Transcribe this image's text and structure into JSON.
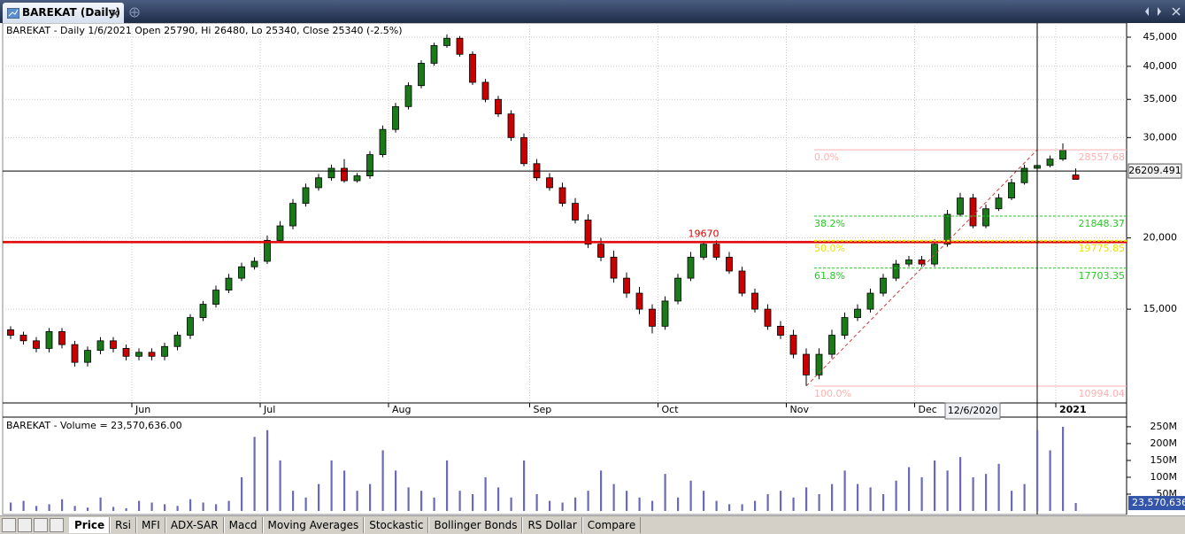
{
  "window": {
    "title": "BAREKAT (Daily)"
  },
  "tabs": [
    "Price",
    "Rsi",
    "MFI",
    "ADX-SAR",
    "Macd",
    "Moving Averages",
    "Stockastic",
    "Bollinger Bonds",
    "RS Dollar",
    "Compare"
  ],
  "chart_data": [
    {
      "type": "candlestick",
      "title": "BAREKAT - Daily 1/6/2021 Open 25790, Hi 26480, Lo 25340, Close 25340 (-2.5%)",
      "categories": [
        null,
        null,
        null,
        null,
        null,
        null,
        null,
        null,
        null,
        null,
        "Jun",
        null,
        null,
        null,
        null,
        null,
        null,
        null,
        null,
        null,
        "Jul",
        null,
        null,
        null,
        null,
        null,
        null,
        null,
        null,
        null,
        "Aug",
        null,
        null,
        null,
        null,
        null,
        null,
        null,
        null,
        null,
        null,
        "Sep",
        null,
        null,
        null,
        null,
        null,
        null,
        null,
        null,
        null,
        "Oct",
        null,
        null,
        null,
        null,
        null,
        null,
        null,
        null,
        null,
        "Nov",
        null,
        null,
        null,
        null,
        null,
        null,
        null,
        null,
        null,
        "Dec",
        null,
        null,
        null,
        null,
        null,
        null,
        null,
        null,
        null,
        null,
        "2021",
        null
      ],
      "open": [
        13800,
        13500,
        13200,
        12800,
        13700,
        13000,
        12100,
        12700,
        13200,
        12800,
        12400,
        12600,
        12400,
        12900,
        13500,
        14500,
        15300,
        16200,
        17000,
        17800,
        18200,
        19800,
        21000,
        23000,
        24500,
        25500,
        26500,
        25200,
        25700,
        28000,
        31000,
        34000,
        37000,
        40500,
        43500,
        44800,
        42000,
        37500,
        35000,
        33000,
        30000,
        27000,
        25500,
        24500,
        23000,
        21500,
        19500,
        18500,
        17000,
        16000,
        15000,
        14000,
        15500,
        17000,
        18500,
        19500,
        18500,
        17500,
        16000,
        15000,
        14000,
        13500,
        12500,
        11500,
        12500,
        13500,
        14500,
        15000,
        16000,
        17000,
        18000,
        18300,
        18000,
        19500,
        22000,
        23500,
        21000,
        22500,
        23500,
        25000,
        26500,
        26800,
        27500,
        25790
      ],
      "high": [
        14000,
        13700,
        13400,
        13900,
        13900,
        13200,
        12900,
        13400,
        13400,
        13000,
        12800,
        12800,
        13100,
        13700,
        14700,
        15500,
        16500,
        17300,
        18100,
        18500,
        20200,
        21400,
        23400,
        24900,
        25900,
        26900,
        27500,
        26000,
        28400,
        31500,
        34500,
        37500,
        41000,
        44000,
        45500,
        45200,
        42500,
        38000,
        35500,
        33500,
        30500,
        27500,
        26000,
        25000,
        23500,
        22000,
        20000,
        19000,
        17400,
        16400,
        15300,
        15800,
        17300,
        18900,
        19670,
        19800,
        18900,
        17800,
        16300,
        15300,
        14300,
        13800,
        12800,
        12800,
        13800,
        14800,
        15300,
        16300,
        17300,
        18300,
        18600,
        18600,
        19900,
        22400,
        24000,
        23900,
        22900,
        23900,
        25400,
        26900,
        27200,
        27900,
        29300,
        26480
      ],
      "low": [
        13300,
        13000,
        12600,
        12600,
        12800,
        11900,
        11900,
        12500,
        12600,
        12200,
        12200,
        12200,
        12200,
        12700,
        13300,
        14300,
        15100,
        16000,
        16800,
        17600,
        18000,
        19600,
        20700,
        22700,
        24200,
        25200,
        25000,
        25000,
        25400,
        27700,
        30600,
        33600,
        36600,
        40100,
        43100,
        41600,
        37100,
        34600,
        32600,
        29600,
        26700,
        25200,
        24200,
        22700,
        21200,
        19200,
        18200,
        16700,
        15700,
        14700,
        13600,
        13800,
        15300,
        16800,
        18300,
        18300,
        17300,
        15800,
        14800,
        13800,
        13300,
        12300,
        11000,
        11300,
        12300,
        13300,
        14300,
        14800,
        15800,
        16800,
        17800,
        17800,
        17800,
        19300,
        21800,
        20800,
        20800,
        22300,
        23300,
        24800,
        26300,
        26600,
        27300,
        25340
      ],
      "close": [
        13500,
        13200,
        12800,
        13700,
        13000,
        12100,
        12700,
        13200,
        12800,
        12400,
        12600,
        12400,
        12900,
        13500,
        14500,
        15300,
        16200,
        17000,
        17800,
        18200,
        19800,
        21000,
        23000,
        24500,
        25500,
        26500,
        25200,
        25700,
        28000,
        31000,
        34000,
        37000,
        40500,
        43500,
        44800,
        42000,
        37500,
        35000,
        33000,
        30000,
        27000,
        25500,
        24500,
        23000,
        21500,
        19500,
        18500,
        17000,
        16000,
        15000,
        14000,
        15500,
        17000,
        18500,
        19500,
        18500,
        17500,
        16000,
        15000,
        14000,
        13500,
        12500,
        11500,
        12500,
        13500,
        14500,
        15000,
        16000,
        17000,
        18000,
        18300,
        18000,
        19500,
        22000,
        23500,
        21000,
        22500,
        23500,
        25000,
        26500,
        26800,
        27500,
        28500,
        25340
      ],
      "up_color": "#1a7a1a",
      "down_color": "#c80000",
      "ylim": [
        10270,
        46970
      ],
      "log_scale": true,
      "grid": true,
      "yticks": [
        {
          "value": 15000,
          "label": "15,000"
        },
        {
          "value": 20000,
          "label": "20,000"
        },
        {
          "value": 30000,
          "label": "30,000"
        },
        {
          "value": 35000,
          "label": "35,000"
        },
        {
          "value": 40000,
          "label": "40,000"
        },
        {
          "value": 45000,
          "label": "45,000"
        }
      ],
      "horizontal_lines": [
        {
          "value": 19670,
          "label": "19670",
          "color": "#e00000"
        }
      ],
      "fibonacci": [
        {
          "level": "0.0%",
          "value": 28557.68,
          "color": "#ffb0b0"
        },
        {
          "level": "38.2%",
          "value": 21848.37,
          "color": "#22cc22"
        },
        {
          "level": "50.0%",
          "value": 19775.85,
          "color": "#e6e600"
        },
        {
          "level": "61.8%",
          "value": 17703.35,
          "color": "#22cc22"
        },
        {
          "level": "100.0%",
          "value": 10994.04,
          "color": "#ffb0b0"
        }
      ],
      "crosshair": {
        "value": 26209.491,
        "date": "12/6/2020"
      }
    },
    {
      "type": "bar",
      "title": "BAREKAT - Volume = 23,570,636.00",
      "values": [
        25000000,
        30000000,
        15000000,
        20000000,
        35000000,
        15000000,
        10000000,
        40000000,
        12000000,
        8000000,
        30000000,
        25000000,
        20000000,
        15000000,
        35000000,
        25000000,
        20000000,
        30000000,
        100000000,
        220000000,
        240000000,
        150000000,
        60000000,
        40000000,
        80000000,
        150000000,
        120000000,
        60000000,
        80000000,
        180000000,
        120000000,
        70000000,
        60000000,
        40000000,
        150000000,
        60000000,
        50000000,
        100000000,
        70000000,
        40000000,
        150000000,
        50000000,
        30000000,
        25000000,
        40000000,
        60000000,
        120000000,
        80000000,
        60000000,
        40000000,
        30000000,
        110000000,
        40000000,
        90000000,
        60000000,
        30000000,
        20000000,
        20000000,
        30000000,
        50000000,
        60000000,
        40000000,
        70000000,
        50000000,
        80000000,
        120000000,
        80000000,
        70000000,
        50000000,
        90000000,
        130000000,
        100000000,
        150000000,
        120000000,
        160000000,
        100000000,
        110000000,
        140000000,
        60000000,
        80000000,
        240000000,
        180000000,
        250000000,
        23570636
      ],
      "last_label": "23,570,636",
      "color": "#6a6ab8",
      "ylim": [
        0,
        276000000
      ],
      "yticks": [
        {
          "value": 50000000,
          "label": "50M"
        },
        {
          "value": 100000000,
          "label": "100M"
        },
        {
          "value": 150000000,
          "label": "150M"
        },
        {
          "value": 200000000,
          "label": "200M"
        },
        {
          "value": 250000000,
          "label": "250M"
        }
      ]
    }
  ]
}
